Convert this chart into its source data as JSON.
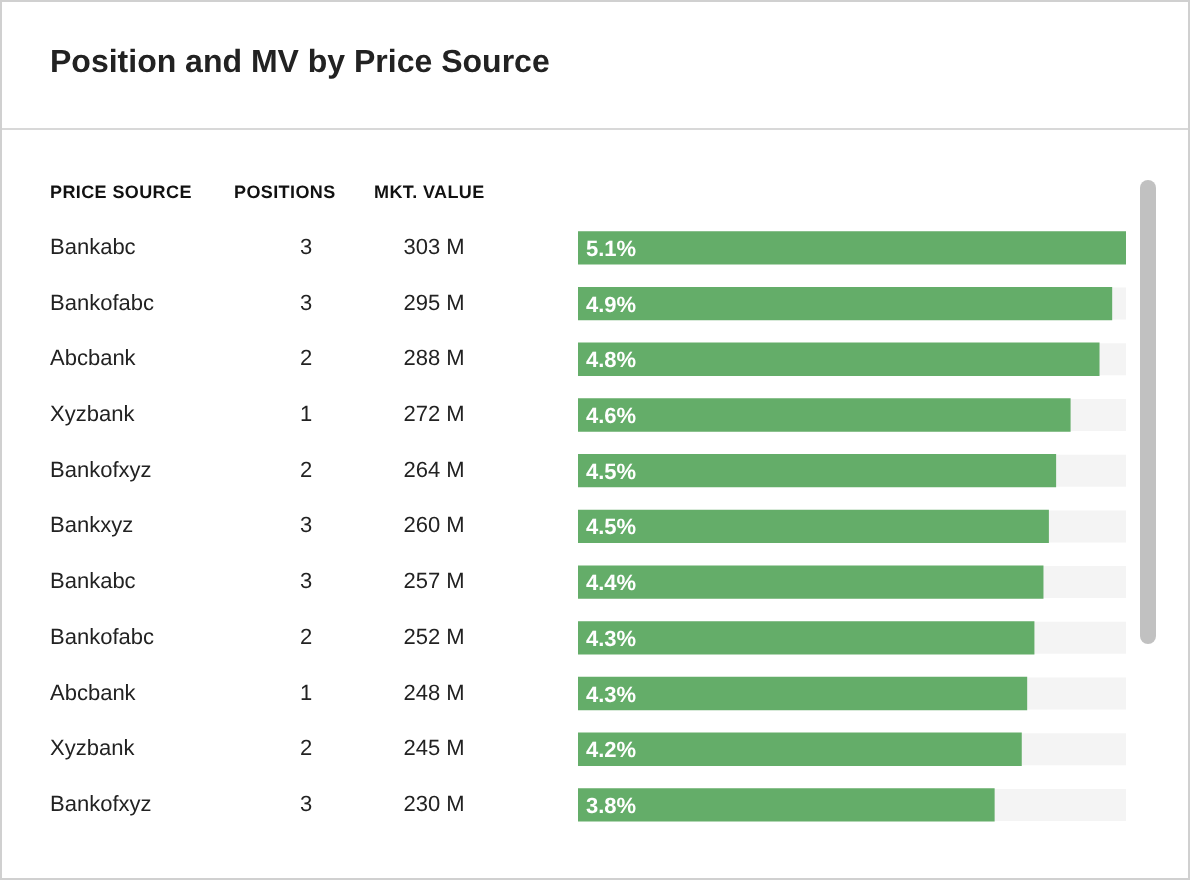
{
  "chart_data": {
    "type": "bar",
    "orientation": "horizontal",
    "title": "Position and MV by Price Source",
    "ylabel": "PRICE SOURCE",
    "categories": [
      "Bankabc",
      "Bankofabc",
      "Abcbank",
      "Xyzbank",
      "Bankofxyz",
      "Bankxyz",
      "Bankabc",
      "Bankofabc",
      "Abcbank",
      "Xyzbank",
      "Bankofxyz"
    ],
    "xlim": [
      0,
      303
    ],
    "tick_labels": "y",
    "grid": false,
    "legend": false,
    "series": [
      {
        "name": "MKT. VALUE",
        "color": "#64ad69",
        "values": [
          303,
          295,
          288,
          272,
          264,
          260,
          257,
          252,
          248,
          245,
          230
        ],
        "value_labels": [
          "303 M",
          "295 M",
          "288 M",
          "272 M",
          "264 M",
          "260 M",
          "257 M",
          "252 M",
          "248 M",
          "245 M",
          "230 M"
        ]
      }
    ],
    "annotations": [
      "POSITIONS",
      "3",
      "3",
      "2",
      "1",
      "2",
      "3",
      "3",
      "2",
      "1",
      "2",
      "3",
      "5.1%",
      "4.9%",
      "4.8%",
      "4.6%",
      "4.5%",
      "4.5%",
      "4.4%",
      "4.3%",
      "4.3%",
      "4.2%",
      "3.8%"
    ]
  }
}
